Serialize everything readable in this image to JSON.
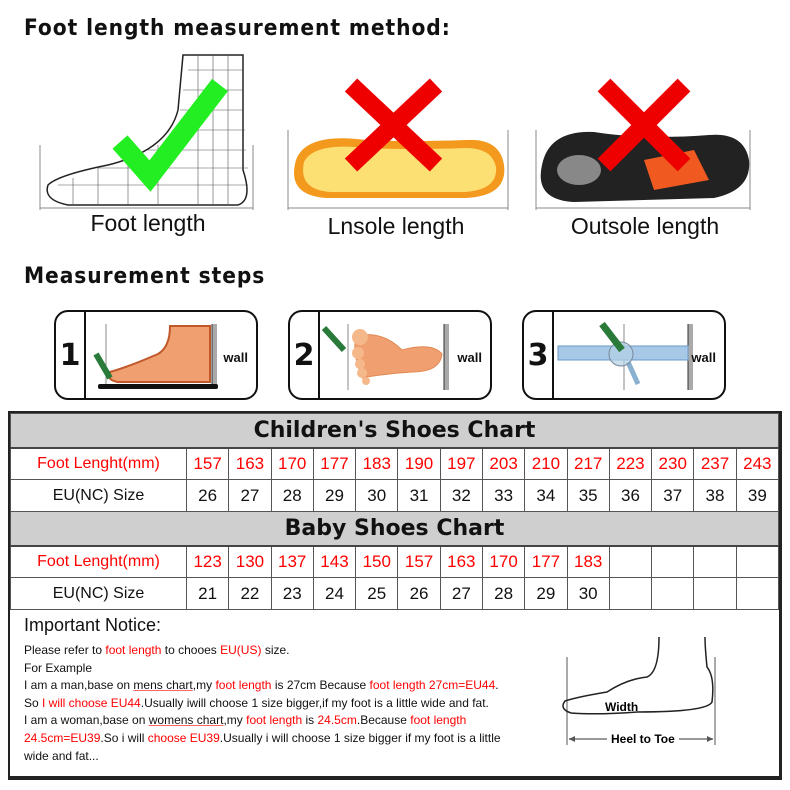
{
  "method": {
    "title": "Foot length measurement method:",
    "items": [
      {
        "label": "Foot length",
        "mark": "check-icon",
        "color": "#22dd22"
      },
      {
        "label": "Lnsole length",
        "mark": "cross-icon",
        "color": "#ee0000"
      },
      {
        "label": "Outsole length",
        "mark": "cross-icon",
        "color": "#ee0000"
      }
    ]
  },
  "steps": {
    "title": "Measurement steps",
    "wall_label": "wall",
    "items": [
      {
        "num": "1"
      },
      {
        "num": "2"
      },
      {
        "num": "3"
      }
    ]
  },
  "colors": {
    "highlight": "#ff0000",
    "header_bg": "#cfcfcf"
  },
  "children_chart": {
    "title": "Children's Shoes Chart",
    "row1_label": "Foot Lenght(mm)",
    "row2_label": "EU(NC) Size",
    "foot_length": [
      "157",
      "163",
      "170",
      "177",
      "183",
      "190",
      "197",
      "203",
      "210",
      "217",
      "223",
      "230",
      "237",
      "243"
    ],
    "eu_size": [
      "26",
      "27",
      "28",
      "29",
      "30",
      "31",
      "32",
      "33",
      "34",
      "35",
      "36",
      "37",
      "38",
      "39"
    ]
  },
  "baby_chart": {
    "title": "Baby Shoes Chart",
    "row1_label": "Foot Lenght(mm)",
    "row2_label": "EU(NC) Size",
    "foot_length": [
      "123",
      "130",
      "137",
      "143",
      "150",
      "157",
      "163",
      "170",
      "177",
      "183",
      "",
      "",
      "",
      ""
    ],
    "eu_size": [
      "21",
      "22",
      "23",
      "24",
      "25",
      "26",
      "27",
      "28",
      "29",
      "30",
      "",
      "",
      "",
      ""
    ]
  },
  "notice": {
    "title": "Important Notice:",
    "lines": [
      [
        {
          "t": "Please refer to "
        },
        {
          "t": "foot length",
          "r": 1
        },
        {
          "t": " to chooes "
        },
        {
          "t": "EU(US)",
          "r": 1
        },
        {
          "t": " size."
        }
      ],
      [
        {
          "t": "For Example"
        }
      ],
      [
        {
          "t": "I am a man,base on "
        },
        {
          "t": "mens chart",
          "u": 1
        },
        {
          "t": ",my "
        },
        {
          "t": "foot length",
          "r": 1
        },
        {
          "t": " is 27cm Because "
        },
        {
          "t": "foot length 27cm=EU44",
          "r": 1
        },
        {
          "t": "."
        }
      ],
      [
        {
          "t": "So "
        },
        {
          "t": "I will choose EU44",
          "r": 1
        },
        {
          "t": ".Usually iwill choose 1 size bigger,if my foot is a little wide and fat."
        }
      ],
      [
        {
          "t": "I am a woman,base on "
        },
        {
          "t": "womens chart",
          "u": 1
        },
        {
          "t": ",my "
        },
        {
          "t": "foot length",
          "r": 1
        },
        {
          "t": " is "
        },
        {
          "t": "24.5cm",
          "r": 1
        },
        {
          "t": ".Because "
        },
        {
          "t": "foot length",
          "r": 1
        }
      ],
      [
        {
          "t": "24.5cm=EU39",
          "r": 1
        },
        {
          "t": ".So i will "
        },
        {
          "t": "choose EU39",
          "r": 1
        },
        {
          "t": ".Usually i will choose 1 size bigger if my foot is a little"
        }
      ],
      [
        {
          "t": "wide and fat..."
        }
      ]
    ]
  },
  "diagram": {
    "width_label": "Width",
    "length_label": "Heel to Toe"
  }
}
